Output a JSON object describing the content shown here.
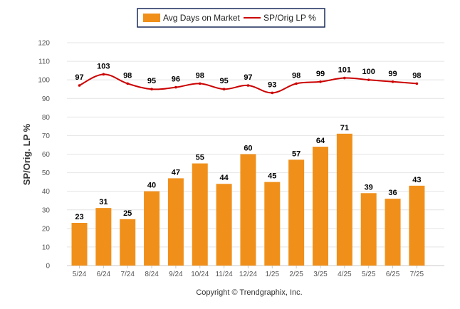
{
  "chart_data": {
    "type": "bar",
    "categories": [
      "5/24",
      "6/24",
      "7/24",
      "8/24",
      "9/24",
      "10/24",
      "11/24",
      "12/24",
      "1/25",
      "2/25",
      "3/25",
      "4/25",
      "5/25",
      "6/25",
      "7/25"
    ],
    "series": [
      {
        "name": "Avg Days on Market",
        "type": "bar",
        "color": "#f0901a",
        "values": [
          23,
          31,
          25,
          40,
          47,
          55,
          44,
          60,
          45,
          57,
          64,
          71,
          39,
          36,
          43
        ]
      },
      {
        "name": "SP/Orig LP %",
        "type": "line",
        "color": "#cc0000",
        "values": [
          97,
          103,
          98,
          95,
          96,
          98,
          95,
          97,
          93,
          98,
          99,
          101,
          100,
          99,
          98
        ]
      }
    ],
    "ylabel": "SP/Orig. LP %",
    "ylim": [
      0,
      120
    ],
    "yticks": [
      0,
      10,
      20,
      30,
      40,
      50,
      60,
      70,
      80,
      90,
      100,
      110,
      120
    ],
    "grid": true,
    "legend_position": "top-center"
  },
  "footer": {
    "copyright": "Copyright © Trendgraphix, Inc."
  }
}
